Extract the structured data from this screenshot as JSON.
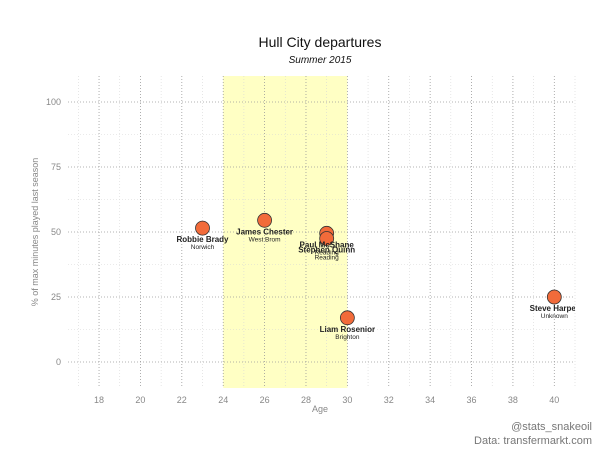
{
  "chart_data": {
    "type": "scatter",
    "title": "Hull City departures",
    "subtitle": "Summer 2015",
    "xlabel": "Age",
    "ylabel": "% of max minutes played last season",
    "xlim": [
      16.5,
      41
    ],
    "ylim": [
      -10,
      110
    ],
    "xticks": [
      18,
      20,
      22,
      24,
      26,
      28,
      30,
      32,
      34,
      36,
      38,
      40
    ],
    "yticks": [
      0,
      25,
      50,
      75,
      100
    ],
    "highlight_band": {
      "x_from": 24,
      "x_to": 30,
      "color": "#ffffc4"
    },
    "grid": true,
    "marker_color": "#f26b3a",
    "points": [
      {
        "name": "Robbie Brady",
        "club": "Norwich",
        "x": 23,
        "y": 51.5
      },
      {
        "name": "James Chester",
        "club": "West Brom",
        "x": 26,
        "y": 54.5
      },
      {
        "name": "Paul McShane",
        "club": "Reading",
        "x": 29,
        "y": 49.5
      },
      {
        "name": "Stephen Quinn",
        "club": "Reading",
        "x": 29,
        "y": 47.5
      },
      {
        "name": "Liam Rosenior",
        "club": "Brighton",
        "x": 30,
        "y": 17
      },
      {
        "name": "Steve Harper",
        "club": "Unknown",
        "x": 40,
        "y": 25
      }
    ]
  },
  "credits": {
    "handle": "@stats_snakeoil",
    "source": "Data: transfermarkt.com"
  }
}
